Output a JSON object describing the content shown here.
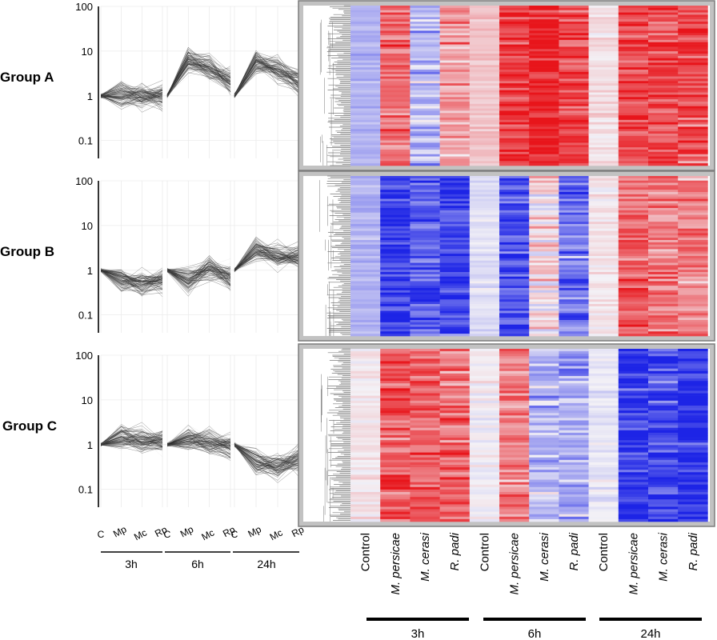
{
  "figure": {
    "groups": [
      {
        "label": "Group A",
        "profile": [
          [
            1,
            1,
            1,
            1
          ],
          [
            1,
            6,
            4,
            2
          ],
          [
            1,
            6,
            4,
            2
          ]
        ],
        "heat_pattern": [
          [
            -0.3,
            0.6,
            -0.3,
            0.4
          ],
          [
            0.2,
            0.85,
            0.95,
            0.8
          ],
          [
            0.1,
            0.8,
            0.8,
            0.75
          ]
        ]
      },
      {
        "label": "Group B",
        "profile": [
          [
            1,
            0.6,
            0.5,
            0.6
          ],
          [
            1,
            0.6,
            1.2,
            0.7
          ],
          [
            1,
            3,
            2,
            2
          ]
        ],
        "heat_pattern": [
          [
            -0.3,
            -0.85,
            -0.75,
            -0.85
          ],
          [
            -0.1,
            -0.8,
            0.1,
            -0.6
          ],
          [
            0.05,
            0.7,
            0.6,
            0.5
          ]
        ]
      },
      {
        "label": "Group C",
        "profile": [
          [
            1,
            1.5,
            1.3,
            1.2
          ],
          [
            1,
            1.4,
            1.1,
            0.9
          ],
          [
            1,
            0.4,
            0.3,
            0.5
          ]
        ],
        "heat_pattern": [
          [
            0.05,
            0.7,
            0.65,
            0.6
          ],
          [
            0,
            0.55,
            -0.3,
            -0.35
          ],
          [
            -0.05,
            -0.9,
            -0.8,
            -0.9
          ]
        ]
      }
    ],
    "y_ticks": [
      "100",
      "10",
      "1",
      "0.1"
    ],
    "y_axis_scale": "log",
    "x_points": [
      "C",
      "Mp",
      "Mc",
      "Rp"
    ],
    "time_points": [
      "3h",
      "6h",
      "24h"
    ],
    "heatmap_columns": [
      "Control",
      "M. persicae",
      "M. cerasi",
      "R. padi",
      "Control",
      "M. persicae",
      "M. cerasi",
      "R. padi",
      "Control",
      "M. persicae",
      "M. cerasi",
      "R. padi"
    ],
    "colors": {
      "up": "#e8151b",
      "down": "#1d24e6",
      "neutral": "#f3f1f6",
      "panel_frame": "#a9a9a9",
      "dendrogram": "#7a7a7a",
      "line": "#2a2a2a"
    }
  }
}
